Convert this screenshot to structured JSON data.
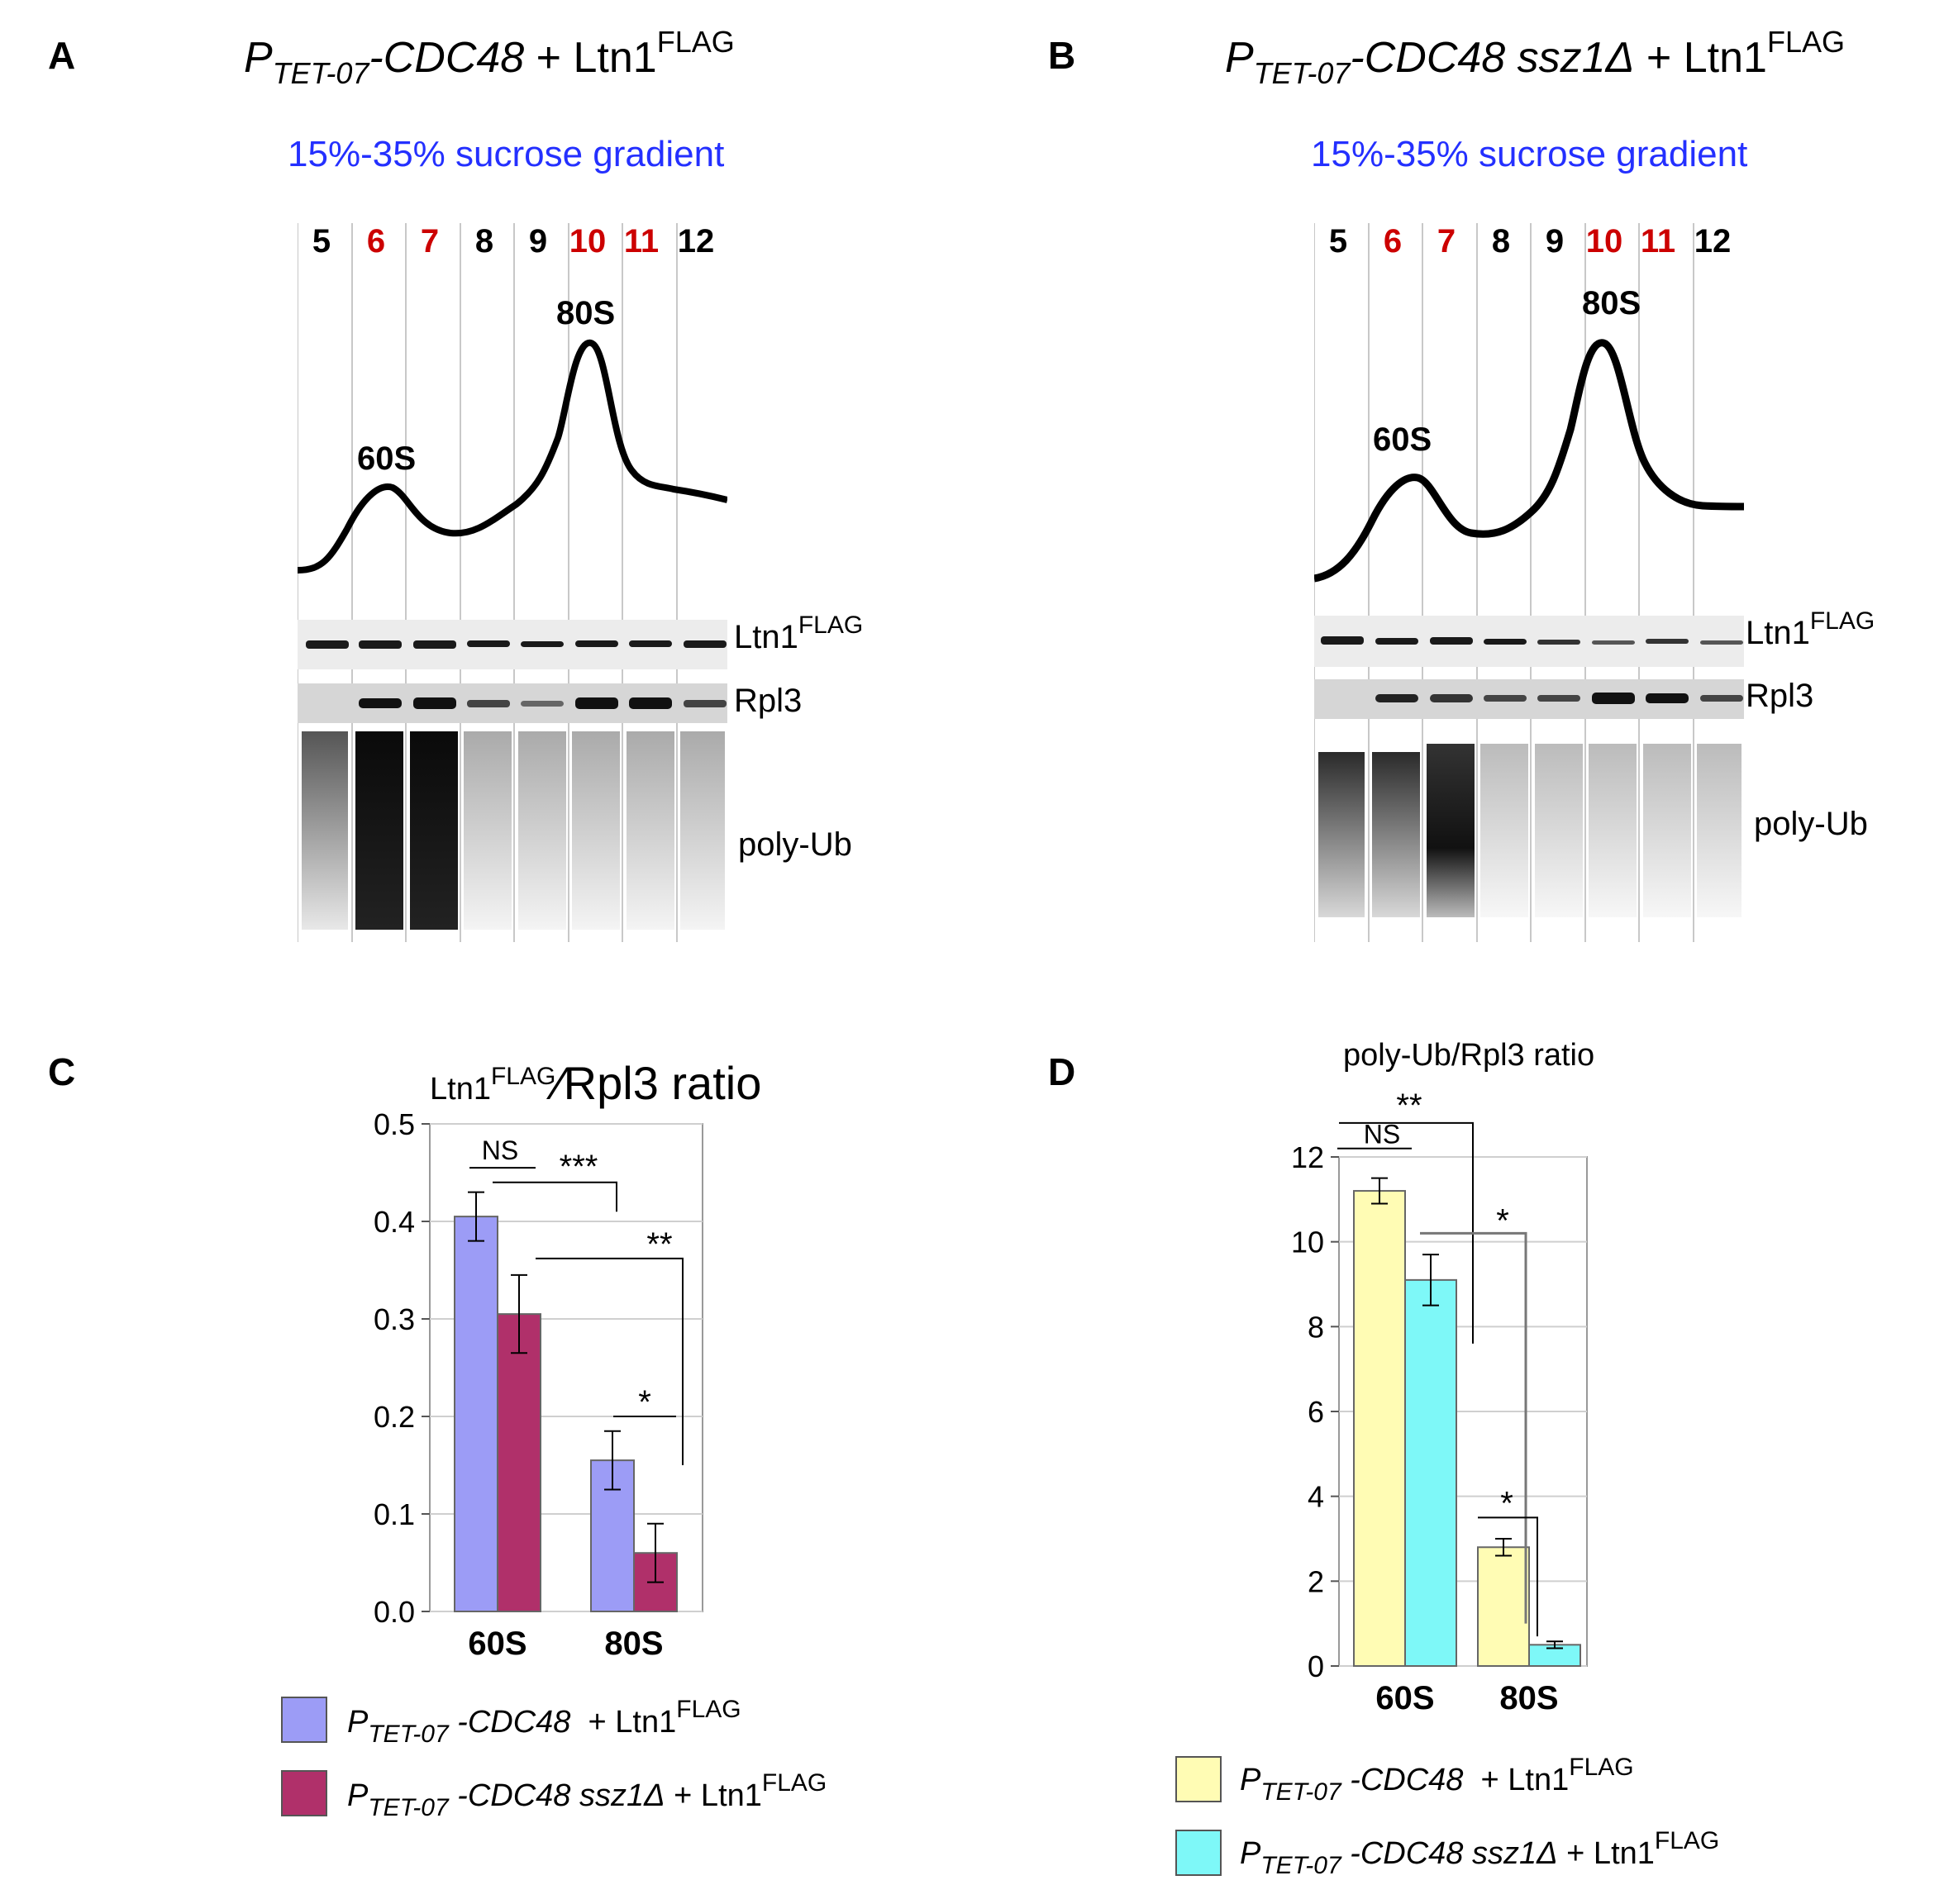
{
  "panels": {
    "A": {
      "letter": "A",
      "title_P": "P",
      "title_sub": "TET-07",
      "title_gene": "-CDC48",
      "title_rest": " + Ltn1",
      "title_sup": "FLAG",
      "gradient": "15%-35% sucrose gradient",
      "fractions": [
        "5",
        "6",
        "7",
        "8",
        "9",
        "10",
        "11",
        "12"
      ],
      "highlighted_fractions": [
        "6",
        "7",
        "10",
        "11"
      ],
      "peak_60": "60S",
      "peak_80": "80S",
      "blot_ltn1": "Ltn1",
      "blot_ltn1_sup": "FLAG",
      "blot_rpl3": "Rpl3",
      "blot_polyub": "poly-Ub"
    },
    "B": {
      "letter": "B",
      "title_P": "P",
      "title_sub": "TET-07",
      "title_gene": "-CDC48 ssz1Δ",
      "title_rest": " + Ltn1",
      "title_sup": "FLAG",
      "gradient": "15%-35% sucrose gradient",
      "fractions": [
        "5",
        "6",
        "7",
        "8",
        "9",
        "10",
        "11",
        "12"
      ],
      "highlighted_fractions": [
        "6",
        "7",
        "10",
        "11"
      ],
      "peak_60": "60S",
      "peak_80": "80S",
      "blot_ltn1": "Ltn1",
      "blot_ltn1_sup": "FLAG",
      "blot_rpl3": "Rpl3",
      "blot_polyub": "poly-Ub"
    },
    "C": {
      "letter": "C",
      "title_a": "Ltn1",
      "title_sup": "FLAG",
      "title_b": "⁄Rpl3 ratio",
      "legend": [
        {
          "P": "P",
          "sub": "TET-07",
          "gene": " -CDC48",
          "rest": "  + Ltn1",
          "sup": "FLAG",
          "color": "#9c9cf6"
        },
        {
          "P": "P",
          "sub": "TET-07",
          "gene": " -CDC48 ssz1Δ",
          "rest": " + Ltn1",
          "sup": "FLAG",
          "color": "#b0306a"
        }
      ]
    },
    "D": {
      "letter": "D",
      "title": "poly-Ub/Rpl3 ratio",
      "legend": [
        {
          "P": "P",
          "sub": "TET-07",
          "gene": " -CDC48",
          "rest": "  + Ltn1",
          "sup": "FLAG",
          "color": "#fffcb4"
        },
        {
          "P": "P",
          "sub": "TET-07",
          "gene": " -CDC48 ssz1Δ",
          "rest": " + Ltn1",
          "sup": "FLAG",
          "color": "#7ef8f8"
        }
      ]
    }
  },
  "chart_data": [
    {
      "type": "bar",
      "panel": "C",
      "title": "Ltn1FLAG/Rpl3 ratio",
      "categories": [
        "60S",
        "80S"
      ],
      "series": [
        {
          "name": "PTET-07-CDC48 + Ltn1FLAG",
          "values": [
            0.405,
            0.155
          ],
          "errors": [
            0.025,
            0.03
          ],
          "color": "#9c9cf6"
        },
        {
          "name": "PTET-07-CDC48 ssz1Δ + Ltn1FLAG",
          "values": [
            0.305,
            0.06
          ],
          "errors": [
            0.04,
            0.03
          ],
          "color": "#b0306a"
        }
      ],
      "ylim": [
        0,
        0.5
      ],
      "yticks": [
        "0.0",
        "0.1",
        "0.2",
        "0.3",
        "0.4",
        "0.5"
      ],
      "significance": [
        "NS",
        "***",
        "**",
        "*"
      ]
    },
    {
      "type": "bar",
      "panel": "D",
      "title": "poly-Ub/Rpl3 ratio",
      "categories": [
        "60S",
        "80S"
      ],
      "series": [
        {
          "name": "PTET-07-CDC48 + Ltn1FLAG",
          "values": [
            11.2,
            2.8
          ],
          "errors": [
            0.3,
            0.2
          ],
          "color": "#fffcb4"
        },
        {
          "name": "PTET-07-CDC48 ssz1Δ + Ltn1FLAG",
          "values": [
            9.1,
            0.5
          ],
          "errors": [
            0.6,
            0.08
          ],
          "color": "#7ef8f8"
        }
      ],
      "ylim": [
        0,
        12
      ],
      "yticks": [
        "0",
        "2",
        "4",
        "6",
        "8",
        "10",
        "12"
      ],
      "significance": [
        "**",
        "NS",
        "*",
        "*"
      ]
    }
  ]
}
